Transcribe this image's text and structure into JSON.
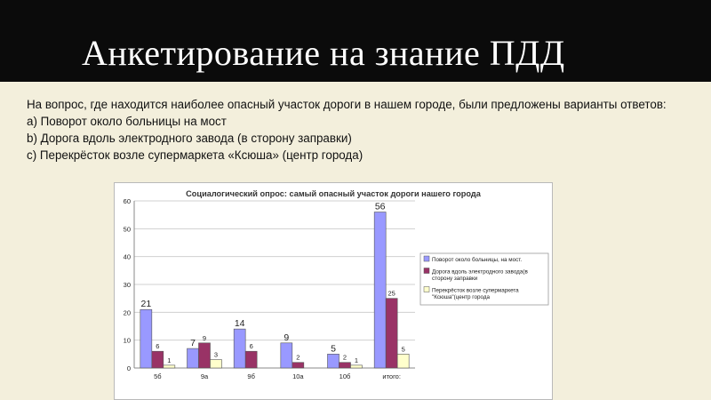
{
  "slide": {
    "title": "Анкетирование на знание ПДД",
    "question": "На вопрос, где находится наиболее опасный участок дороги в нашем городе, были предложены варианты ответов:",
    "options": [
      "a) Поворот около больницы на мост",
      "b) Дорога вдоль электродного завода (в сторону заправки)",
      "c) Перекрёсток возле супермаркета «Ксюша» (центр города)"
    ]
  },
  "colors": {
    "title_bar": "#0b0b0b",
    "background": "#f3efdc",
    "series": [
      "#9999ff",
      "#993366",
      "#ffffcc"
    ]
  },
  "chart_data": {
    "type": "bar",
    "title": "Социалогический опрос: самый опасный участок дороги нашего города",
    "categories": [
      "5б",
      "9а",
      "9б",
      "10а",
      "10б",
      "итого:"
    ],
    "series": [
      {
        "name": "Поворот около больницы, на мост.",
        "values": [
          21,
          7,
          14,
          9,
          5,
          56
        ],
        "labels": [
          "21",
          "7",
          "14",
          "9",
          "5",
          "56"
        ]
      },
      {
        "name": "Дорога вдоль электродного завода(в сторону заправки)",
        "values": [
          6,
          9,
          6,
          2,
          2,
          25
        ],
        "labels": [
          "6",
          "9",
          "6",
          "2",
          "2",
          "25"
        ]
      },
      {
        "name": "Перекрёсток возле супермаркета \"Ксюша\"(центр города)",
        "values": [
          1,
          3,
          0,
          0,
          1,
          5
        ],
        "labels": [
          "1",
          "3",
          "",
          "",
          "1",
          "5"
        ]
      }
    ],
    "ylim": [
      0,
      60
    ],
    "yticks": [
      "0",
      "10",
      "20",
      "30",
      "40",
      "50",
      "60"
    ],
    "gridlines": true,
    "legend_position": "right"
  }
}
